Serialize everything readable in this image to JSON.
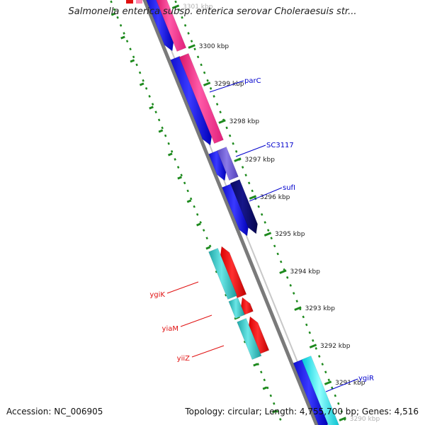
{
  "title": "Salmonella enterica subsp. enterica serovar Choleraesuis str...",
  "footer": {
    "accession": "Accession: NC_006905",
    "summary": "Topology: circular; Length: 4,755,700 bp; Genes: 4,516"
  },
  "colors": {
    "backbone": "#808080",
    "track_dots": "#1e8a1e",
    "forward_label": "#0000cc",
    "reverse_label": "#e01010",
    "tick_label": "#222222"
  },
  "scale_ticks": [
    {
      "label": "3301 kbp",
      "faded": true
    },
    {
      "label": "3300 kbp"
    },
    {
      "label": "3299 kbp"
    },
    {
      "label": "3298 kbp"
    },
    {
      "label": "3297 kbp"
    },
    {
      "label": "3296 kbp"
    },
    {
      "label": "3295 kbp"
    },
    {
      "label": "3294 kbp"
    },
    {
      "label": "3293 kbp"
    },
    {
      "label": "3292 kbp"
    },
    {
      "label": "3291 kbp"
    },
    {
      "label": "3290 kbp",
      "faded": true
    }
  ],
  "genes": [
    {
      "label": "parC",
      "strand": "forward",
      "label_color": "#0000cc"
    },
    {
      "label": "SC3117",
      "strand": "forward",
      "label_color": "#0000cc"
    },
    {
      "label": "sufI",
      "strand": "forward",
      "label_color": "#0000cc"
    },
    {
      "label": "ygiK",
      "strand": "reverse",
      "label_color": "#e01010"
    },
    {
      "label": "yiaM",
      "strand": "reverse",
      "label_color": "#e01010"
    },
    {
      "label": "yiiZ",
      "strand": "reverse",
      "label_color": "#e01010"
    },
    {
      "label": "ygiR",
      "strand": "forward",
      "label_color": "#0000cc"
    }
  ]
}
